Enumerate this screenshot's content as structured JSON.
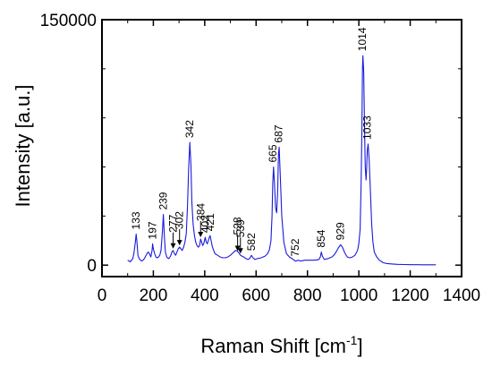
{
  "chart_data": {
    "type": "line",
    "xlabel": "Raman Shift [cm",
    "xlabel_sup": "-1",
    "xlabel_end": "]",
    "ylabel": "Intensity [a.u.]",
    "xlim": [
      0,
      1400
    ],
    "ylim": [
      -7000,
      150000
    ],
    "x_ticks": [
      0,
      200,
      400,
      600,
      800,
      1000,
      1200,
      1400
    ],
    "y_tick_labels": [
      {
        "value": 0,
        "label": "0"
      },
      {
        "value": 150000,
        "label": "150000"
      }
    ],
    "line_color": "#1a1adb",
    "series": [
      {
        "x": [
          100,
          110,
          120,
          125,
          130,
          133,
          136,
          140,
          145,
          150,
          155,
          160,
          165,
          170,
          175,
          180,
          185,
          190,
          195,
          197,
          200,
          205,
          210,
          215,
          220,
          225,
          230,
          235,
          239,
          243,
          247,
          252,
          258,
          263,
          268,
          272,
          277,
          282,
          287,
          292,
          297,
          302,
          307,
          312,
          318,
          323,
          328,
          333,
          337,
          342,
          346,
          350,
          355,
          360,
          365,
          370,
          375,
          380,
          384,
          388,
          392,
          396,
          402,
          406,
          410,
          414,
          418,
          421,
          425,
          430,
          435,
          440,
          450,
          460,
          470,
          480,
          490,
          500,
          510,
          520,
          528,
          533,
          539,
          545,
          552,
          560,
          568,
          575,
          582,
          588,
          595,
          605,
          620,
          635,
          645,
          652,
          658,
          662,
          665,
          668,
          672,
          676,
          680,
          684,
          687,
          690,
          694,
          700,
          708,
          718,
          730,
          740,
          748,
          752,
          756,
          762,
          775,
          790,
          805,
          820,
          835,
          845,
          850,
          854,
          858,
          865,
          880,
          895,
          905,
          915,
          922,
          929,
          936,
          945,
          955,
          965,
          975,
          985,
          995,
          1000,
          1005,
          1009,
          1012,
          1014,
          1016,
          1019,
          1022,
          1025,
          1028,
          1030,
          1033,
          1036,
          1040,
          1045,
          1050,
          1055,
          1060,
          1070,
          1080,
          1095,
          1110,
          1130,
          1150,
          1175,
          1200,
          1225,
          1250,
          1275,
          1300
        ],
        "y": [
          3000,
          2000,
          4000,
          8000,
          14000,
          19000,
          14000,
          6000,
          4000,
          3000,
          2500,
          3000,
          4000,
          5500,
          7000,
          8000,
          7000,
          5000,
          9000,
          13000,
          10000,
          7000,
          5000,
          4500,
          5000,
          6000,
          9000,
          20000,
          31000,
          17000,
          8000,
          5000,
          4000,
          4500,
          6000,
          8000,
          9000,
          7000,
          6000,
          8000,
          10000,
          11000,
          10000,
          9000,
          11000,
          14000,
          19000,
          36000,
          58000,
          75000,
          62000,
          38000,
          25000,
          18000,
          14000,
          12000,
          11000,
          12000,
          16000,
          14000,
          12000,
          13000,
          17000,
          14000,
          13000,
          15000,
          17000,
          18000,
          15000,
          11000,
          9000,
          7000,
          6000,
          5000,
          4500,
          4500,
          5000,
          6000,
          7500,
          9000,
          8500,
          7500,
          6000,
          5500,
          5000,
          4000,
          3500,
          4000,
          6000,
          4500,
          3500,
          4000,
          4500,
          5500,
          7000,
          9500,
          15000,
          30000,
          50000,
          60000,
          48000,
          35000,
          32000,
          45000,
          68000,
          72000,
          55000,
          30000,
          14000,
          7000,
          5000,
          4000,
          3000,
          2500,
          2500,
          3000,
          2500,
          3000,
          3000,
          3000,
          3200,
          3500,
          5000,
          8000,
          5500,
          3500,
          4000,
          5000,
          6500,
          9000,
          11000,
          12500,
          11000,
          7500,
          5000,
          4500,
          5000,
          6000,
          9000,
          13000,
          22000,
          50000,
          85000,
          120000,
          128000,
          118000,
          85000,
          60000,
          52000,
          58000,
          70000,
          74000,
          65000,
          45000,
          25000,
          14000,
          8000,
          5000,
          3000,
          1500,
          1000,
          700,
          500,
          400,
          300,
          300,
          200,
          200,
          200
        ]
      }
    ],
    "annotations": [
      {
        "label": "133",
        "x": 133,
        "y": 19000
      },
      {
        "label": "197",
        "x": 197,
        "y": 13000
      },
      {
        "label": "239",
        "x": 239,
        "y": 31000
      },
      {
        "label": "277",
        "x": 277,
        "y": 9000
      },
      {
        "label": "302",
        "x": 302,
        "y": 11000
      },
      {
        "label": "342",
        "x": 342,
        "y": 75000
      },
      {
        "label": "384",
        "x": 384,
        "y": 16000
      },
      {
        "label": "402",
        "x": 402,
        "y": 17000
      },
      {
        "label": "421",
        "x": 421,
        "y": 18000
      },
      {
        "label": "528",
        "x": 528,
        "y": 7500
      },
      {
        "label": "539",
        "x": 539,
        "y": 6000
      },
      {
        "label": "582",
        "x": 582,
        "y": 6000
      },
      {
        "label": "665",
        "x": 665,
        "y": 60000
      },
      {
        "label": "687",
        "x": 687,
        "y": 72000
      },
      {
        "label": "752",
        "x": 752,
        "y": 2500
      },
      {
        "label": "854",
        "x": 854,
        "y": 8000
      },
      {
        "label": "929",
        "x": 929,
        "y": 12500
      },
      {
        "label": "1014",
        "x": 1014,
        "y": 128000
      },
      {
        "label": "1033",
        "x": 1033,
        "y": 74000
      }
    ],
    "grid": false,
    "legend": "none"
  }
}
